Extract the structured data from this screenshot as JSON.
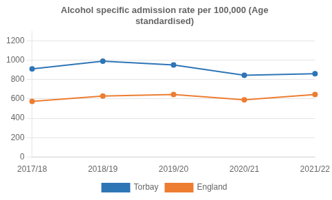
{
  "chart_data": {
    "type": "line",
    "title": "Alcohol specific admission rate per 100,000 (Age\nstandardised)",
    "categories": [
      "2017/18",
      "2018/19",
      "2019/20",
      "2020/21",
      "2021/22"
    ],
    "series": [
      {
        "name": "Torbay",
        "color": "#2e75b6",
        "marker": "circle",
        "values": [
          910,
          990,
          950,
          845,
          860
        ]
      },
      {
        "name": "England",
        "color": "#ed7d31",
        "marker": "circle",
        "values": [
          575,
          630,
          645,
          590,
          645
        ]
      }
    ],
    "ylim": [
      0,
      1300
    ],
    "yticks": [
      0,
      200,
      400,
      600,
      800,
      1000,
      1200
    ],
    "grid": true,
    "legend": "bottom"
  }
}
